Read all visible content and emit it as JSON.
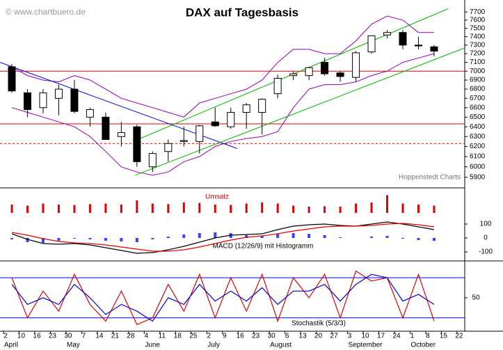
{
  "chart_data": [
    {
      "type": "candlestick",
      "title": "DAX auf Tagesbasis",
      "watermark": "© www.chartbuero.de",
      "source": "Hoppenstedt Charts",
      "categories": [
        "2",
        "10",
        "16",
        "23",
        "30",
        "7",
        "14",
        "21",
        "28",
        "4",
        "11",
        "18",
        "25",
        "2",
        "9",
        "16",
        "23",
        "30",
        "6",
        "13",
        "20",
        "27",
        "3",
        "10",
        "17",
        "24",
        "1",
        "8",
        "15",
        "22"
      ],
      "month_labels": [
        "April",
        null,
        null,
        null,
        "May",
        null,
        null,
        null,
        null,
        "June",
        null,
        null,
        null,
        "July",
        null,
        null,
        null,
        "August",
        null,
        null,
        null,
        null,
        "September",
        null,
        null,
        null,
        "October",
        null,
        null,
        null
      ],
      "open": [
        7050,
        6760,
        6600,
        6700,
        6800,
        6500,
        6500,
        6300,
        6400,
        6000,
        6150,
        6250,
        6250,
        6450,
        6400,
        6550,
        6550,
        6750,
        6950,
        6950,
        7100,
        6980,
        6930,
        7220,
        7420,
        7450,
        7300,
        7280,
        null,
        null
      ],
      "high": [
        7080,
        6800,
        6800,
        6850,
        6900,
        6600,
        6550,
        6450,
        6420,
        6150,
        6270,
        6400,
        6420,
        6600,
        6600,
        6650,
        6700,
        6960,
        7000,
        7050,
        7150,
        7000,
        7230,
        7400,
        7480,
        7480,
        7400,
        7300,
        null,
        null
      ],
      "low": [
        6760,
        6500,
        6540,
        6520,
        6540,
        6400,
        6270,
        6200,
        6000,
        5950,
        6050,
        6200,
        6130,
        6400,
        6380,
        6380,
        6320,
        6700,
        6900,
        6900,
        6950,
        6880,
        6880,
        7200,
        7380,
        7250,
        7250,
        7170,
        null,
        null
      ],
      "close": [
        6780,
        6580,
        6760,
        6800,
        6560,
        6580,
        6270,
        6340,
        6050,
        6130,
        6230,
        6260,
        6410,
        6410,
        6550,
        6630,
        6690,
        6920,
        6970,
        7040,
        6970,
        6940,
        7210,
        7410,
        7450,
        7300,
        7290,
        7230,
        null,
        null
      ],
      "bands": [
        {
          "color": "#9000b0",
          "values": [
            7050,
            6950,
            6900,
            6880,
            6950,
            6900,
            6800,
            6700,
            6650,
            6600,
            6550,
            6500,
            6650,
            6700,
            6750,
            6800,
            6900,
            7100,
            7250,
            7250,
            7200,
            7200,
            7350,
            7550,
            7650,
            7600,
            7450,
            7450,
            null,
            null
          ]
        },
        {
          "color": "#9000b0",
          "values": [
            6600,
            6550,
            6500,
            6450,
            6400,
            6300,
            6150,
            6000,
            5950,
            5920,
            5950,
            6050,
            6100,
            6200,
            6250,
            6280,
            6300,
            6350,
            6600,
            6800,
            6850,
            6850,
            6880,
            6950,
            7000,
            7100,
            7150,
            7200,
            null,
            null
          ]
        }
      ],
      "trendlines": [
        {
          "color": "#0000e0",
          "x": [
            -0.75,
            14.4
          ],
          "values": [
            7100,
            6180
          ]
        },
        {
          "color": "#00b000",
          "x": [
            7.9,
            29
          ],
          "values": [
            5920,
            7270
          ]
        },
        {
          "color": "#00b000",
          "x": [
            7.9,
            27.9
          ],
          "values": [
            6260,
            7740
          ]
        }
      ],
      "hlines": [
        {
          "value": 7000,
          "color": "#e00000",
          "dashed": false
        },
        {
          "value": 6430,
          "color": "#e00000",
          "dashed": false
        },
        {
          "value": 6230,
          "color": "#e00000",
          "dashed": true
        }
      ],
      "log_scale": true,
      "ylim": [
        5800,
        7850
      ],
      "yticks": [
        5900,
        6000,
        6100,
        6200,
        6300,
        6400,
        6500,
        6600,
        6700,
        6800,
        6900,
        7000,
        7100,
        7200,
        7300,
        7400,
        7500,
        7600,
        7700
      ]
    },
    {
      "type": "bar",
      "title": "Umsatz",
      "color": "#e00000",
      "ylim": [
        0,
        100
      ],
      "values": [
        40,
        35,
        45,
        40,
        38,
        42,
        45,
        40,
        60,
        45,
        42,
        50,
        48,
        40,
        38,
        45,
        50,
        45,
        35,
        30,
        32,
        30,
        45,
        50,
        85,
        45,
        40,
        35,
        null,
        null
      ]
    },
    {
      "type": "macd",
      "title": "MACD (12/26/9) mit Histogramm",
      "ylim": [
        -165,
        170
      ],
      "yticks": [
        -100,
        0,
        100
      ],
      "histogram": {
        "color": "#4040ff",
        "values": [
          -10,
          -30,
          -35,
          -20,
          -5,
          -10,
          -20,
          -25,
          -30,
          -10,
          10,
          25,
          35,
          40,
          35,
          20,
          15,
          30,
          35,
          30,
          20,
          5,
          0,
          10,
          15,
          -5,
          -15,
          -20,
          null,
          null
        ]
      },
      "series": [
        {
          "color": "#000000",
          "values": [
            30,
            -10,
            -40,
            -45,
            -40,
            -50,
            -70,
            -90,
            -110,
            -105,
            -85,
            -60,
            -30,
            0,
            20,
            25,
            30,
            60,
            85,
            95,
            100,
            90,
            85,
            100,
            115,
            100,
            80,
            60,
            null,
            null
          ]
        },
        {
          "color": "#e00000",
          "values": [
            40,
            20,
            -5,
            -25,
            -35,
            -40,
            -50,
            -65,
            -80,
            -95,
            -95,
            -85,
            -65,
            -40,
            -15,
            5,
            15,
            30,
            50,
            65,
            80,
            85,
            85,
            90,
            100,
            105,
            95,
            80,
            null,
            null
          ]
        }
      ]
    },
    {
      "type": "line",
      "title": "Stochastik (5/3/3)",
      "ylim": [
        0,
        104
      ],
      "yticks": [
        50
      ],
      "hlines": [
        {
          "value": 80,
          "color": "#0000e0"
        },
        {
          "value": 20,
          "color": "#0000e0"
        }
      ],
      "series": [
        {
          "color": "#e00000",
          "values": [
            80,
            20,
            60,
            30,
            85,
            40,
            15,
            60,
            10,
            20,
            70,
            30,
            85,
            20,
            80,
            30,
            85,
            15,
            80,
            50,
            85,
            20,
            90,
            75,
            80,
            20,
            85,
            15,
            null,
            null
          ]
        },
        {
          "color": "#0000e0",
          "values": [
            70,
            40,
            50,
            40,
            70,
            50,
            25,
            40,
            30,
            15,
            50,
            40,
            70,
            45,
            60,
            45,
            65,
            40,
            60,
            60,
            70,
            45,
            70,
            85,
            80,
            45,
            55,
            40,
            null,
            null
          ]
        }
      ]
    }
  ]
}
